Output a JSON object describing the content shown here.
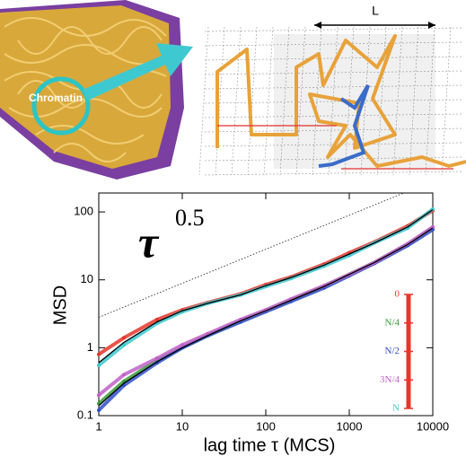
{
  "top": {
    "chromatin_label": "Chromatin",
    "lattice_label": "L"
  },
  "chart_data": {
    "type": "line",
    "xlabel": "lag time τ (MCS)",
    "ylabel": "MSD",
    "annotation": {
      "base": "τ",
      "exponent": "0.5"
    },
    "xscale": "log",
    "yscale": "log",
    "xlim": [
      1,
      10000
    ],
    "ylim": [
      0.1,
      190
    ],
    "xticks": [
      1,
      10,
      100,
      1000,
      10000
    ],
    "yticks": [
      0.1,
      1,
      10,
      100
    ],
    "x": [
      1,
      2,
      5,
      10,
      20,
      50,
      100,
      200,
      500,
      1000,
      2000,
      5000,
      10000
    ],
    "series": [
      {
        "name": "0",
        "color": "#e8352a",
        "values": [
          0.8,
          1.4,
          2.6,
          3.6,
          4.6,
          6.2,
          8.5,
          11,
          17,
          25,
          36,
          62,
          105
        ]
      },
      {
        "name": "N/4",
        "color": "#3a9a3a",
        "values": [
          0.15,
          0.32,
          0.65,
          1,
          1.5,
          2.5,
          3.5,
          5,
          8,
          12,
          18,
          33,
          58
        ]
      },
      {
        "name": "N/2",
        "color": "#3050c8",
        "values": [
          0.12,
          0.28,
          0.6,
          1,
          1.5,
          2.4,
          3.4,
          4.8,
          7.6,
          11.5,
          17.5,
          32,
          55
        ]
      },
      {
        "name": "3N/4",
        "color": "#c060c8",
        "values": [
          0.2,
          0.4,
          0.7,
          1.1,
          1.6,
          2.6,
          3.6,
          5.2,
          8.2,
          12,
          18,
          34,
          60
        ]
      },
      {
        "name": "N",
        "color": "#40c8d0",
        "values": [
          0.55,
          1.1,
          2.3,
          3.4,
          4.5,
          6,
          8,
          10.5,
          16,
          23,
          35,
          58,
          110
        ]
      }
    ],
    "fit_lines": [
      {
        "color": "#000000",
        "values": [
          0.6,
          1.2,
          2.4,
          3.5,
          4.5,
          6,
          8.2,
          10.8,
          16.5,
          24,
          35,
          60,
          108
        ]
      },
      {
        "color": "#000000",
        "values": [
          0.14,
          0.3,
          0.62,
          1,
          1.5,
          2.5,
          3.5,
          5,
          8,
          12,
          18,
          33,
          58
        ]
      }
    ],
    "reference_line": {
      "x": [
        1,
        4500
      ],
      "values": [
        2.8,
        190
      ],
      "color": "#444444"
    },
    "legend_bar_color": "#e8352a"
  }
}
